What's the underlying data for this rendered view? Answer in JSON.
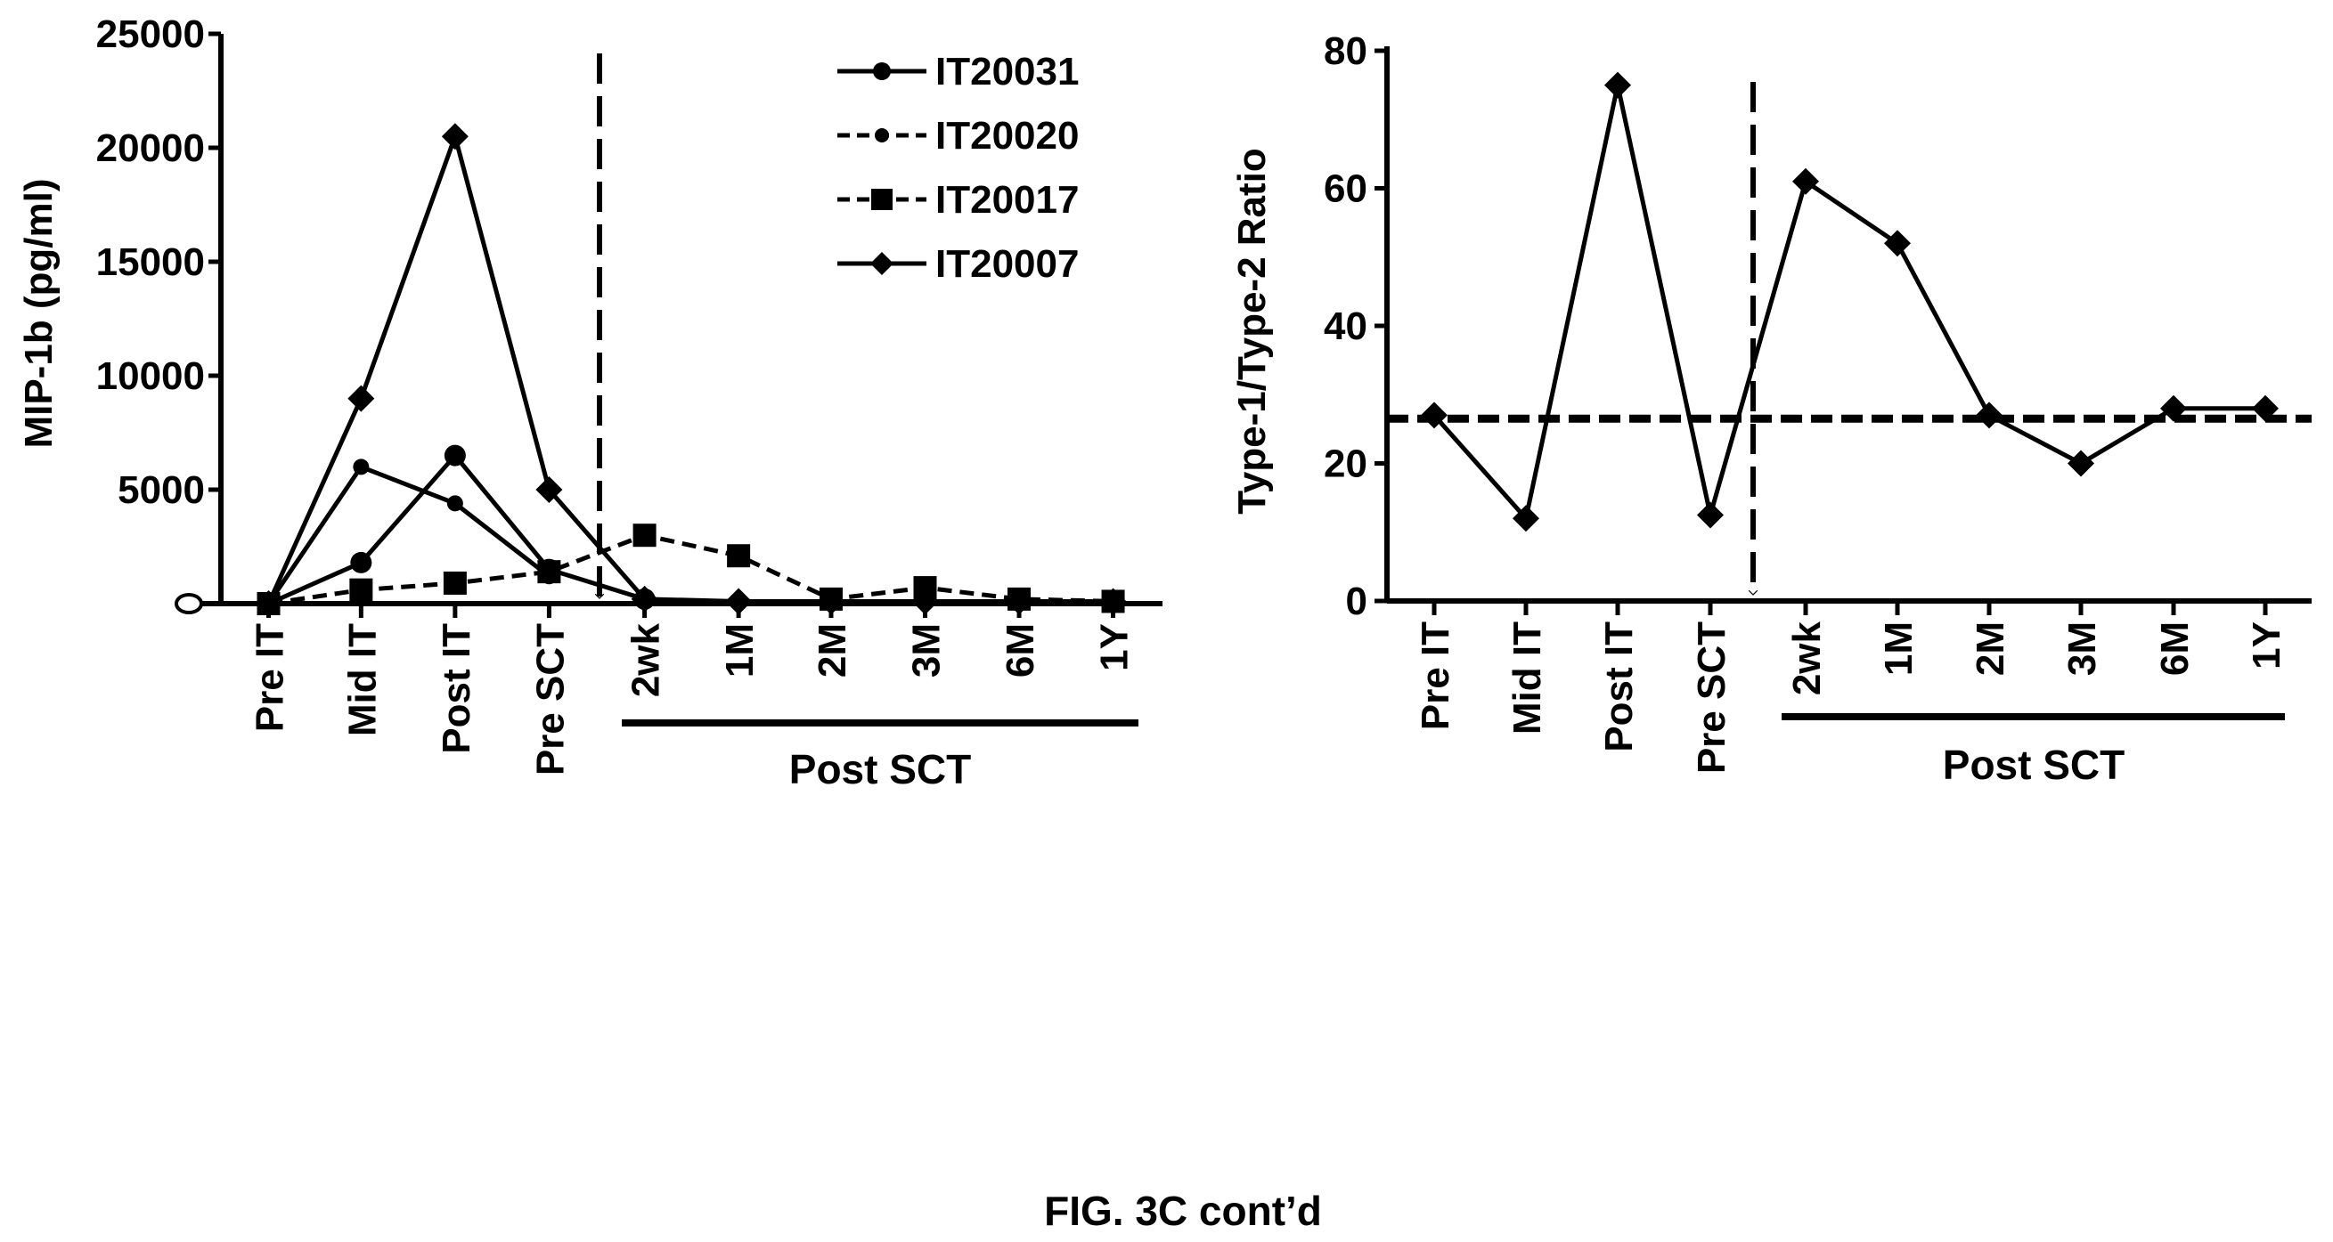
{
  "caption": "FIG. 3C cont’d",
  "chart_data": [
    {
      "type": "line",
      "title": "",
      "xlabel": "",
      "ylabel": "MIP-1b (pg/ml)",
      "ylim": [
        0,
        25000
      ],
      "yticks": [
        0,
        5000,
        10000,
        15000,
        20000,
        25000
      ],
      "ytick_labels": [
        "0",
        "5000",
        "10000",
        "15000",
        "20000",
        "25000"
      ],
      "categories": [
        "Pre IT",
        "Mid IT",
        "Post IT",
        "Pre SCT",
        "2wk",
        "1M",
        "2M",
        "3M",
        "6M",
        "1Y"
      ],
      "group_label": "Post SCT",
      "group_span": [
        "2wk",
        "1Y"
      ],
      "marker": "Pre SCT",
      "legend_position": "top-right",
      "grid": false,
      "series": [
        {
          "name": "IT20031",
          "style": "solid",
          "values": [
            0,
            1800,
            6500,
            1500,
            200,
            null,
            null,
            null,
            null,
            null
          ]
        },
        {
          "name": "IT20020",
          "style": "solid",
          "values": [
            0,
            6000,
            4400,
            1200,
            null,
            null,
            null,
            null,
            null,
            null
          ]
        },
        {
          "name": "IT20017",
          "style": "dashed",
          "values": [
            0,
            600,
            900,
            1400,
            3000,
            2100,
            200,
            700,
            200,
            100
          ]
        },
        {
          "name": "IT20007",
          "style": "solid",
          "values": [
            0,
            9000,
            20500,
            5000,
            200,
            100,
            100,
            100,
            100,
            100
          ]
        }
      ]
    },
    {
      "type": "line",
      "title": "",
      "xlabel": "",
      "ylabel": "Type-1/Type-2 Ratio",
      "ylim": [
        0,
        80
      ],
      "yticks": [
        0,
        20,
        40,
        60,
        80
      ],
      "ytick_labels": [
        "0",
        "20",
        "40",
        "60",
        "80"
      ],
      "categories": [
        "Pre IT",
        "Mid IT",
        "Post IT",
        "Pre SCT",
        "2wk",
        "1M",
        "2M",
        "3M",
        "6M",
        "1Y"
      ],
      "group_label": "Post SCT",
      "group_span": [
        "2wk",
        "1Y"
      ],
      "marker": "Pre SCT",
      "reference_line": 26.5,
      "grid": false,
      "series": [
        {
          "values": [
            27,
            12,
            75,
            12.5,
            61,
            52,
            27,
            20,
            28,
            28
          ]
        }
      ]
    }
  ]
}
